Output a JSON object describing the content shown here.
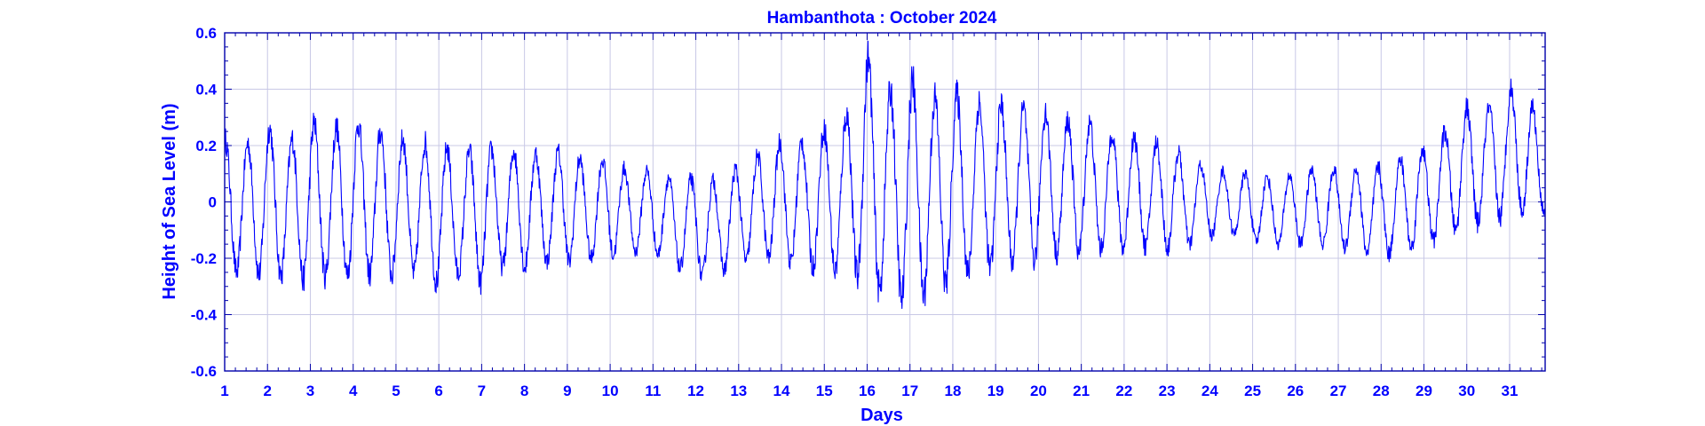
{
  "chart_data": {
    "type": "line",
    "title": "Hambanthota : October 2024",
    "xlabel": "Days",
    "ylabel": "Height of Sea Level (m)",
    "xlim": [
      1,
      31.83
    ],
    "ylim": [
      -0.6,
      0.6
    ],
    "x_ticks": [
      "1",
      "2",
      "3",
      "4",
      "5",
      "6",
      "7",
      "8",
      "9",
      "10",
      "11",
      "12",
      "13",
      "14",
      "15",
      "16",
      "17",
      "18",
      "19",
      "20",
      "21",
      "22",
      "23",
      "24",
      "25",
      "26",
      "27",
      "28",
      "29",
      "30",
      "31"
    ],
    "y_ticks": [
      "0.6",
      "0.4",
      "0.2",
      "0",
      "-0.2",
      "-0.4",
      "-0.6"
    ],
    "grid": true,
    "colors": {
      "line": "#0000ff",
      "text": "#0000cc",
      "grid": "#c8c8e6",
      "axes": "#0000aa"
    },
    "series": [
      {
        "x": [
          1.0,
          1.5,
          2.0,
          2.5,
          3.0,
          3.5,
          4.0,
          4.5,
          5.0,
          5.5,
          6.0,
          6.5,
          7.0,
          7.5,
          8.0,
          8.5,
          9.0,
          9.5,
          10.0,
          10.5,
          11.0,
          11.5,
          12.0,
          12.5,
          13.0,
          13.5,
          14.0,
          14.5,
          15.0,
          15.5,
          16.0,
          16.5,
          17.0,
          17.5,
          18.0,
          18.5,
          19.0,
          19.5,
          20.0,
          20.5,
          21.0,
          21.5,
          22.0,
          22.5,
          23.0,
          23.5,
          24.0,
          24.5,
          25.0,
          25.5,
          26.0,
          26.5,
          27.0,
          27.5,
          28.0,
          28.5,
          29.0,
          29.5,
          30.0,
          30.5,
          31.0,
          31.5,
          31.83
        ],
        "upper": [
          0.26,
          0.24,
          0.31,
          0.25,
          0.33,
          0.3,
          0.33,
          0.3,
          0.27,
          0.25,
          0.25,
          0.2,
          0.24,
          0.2,
          0.23,
          0.18,
          0.23,
          0.15,
          0.19,
          0.12,
          0.14,
          0.1,
          0.11,
          0.1,
          0.15,
          0.2,
          0.25,
          0.25,
          0.3,
          0.35,
          0.58,
          0.45,
          0.5,
          0.42,
          0.44,
          0.4,
          0.4,
          0.37,
          0.38,
          0.32,
          0.34,
          0.28,
          0.28,
          0.24,
          0.24,
          0.17,
          0.14,
          0.12,
          0.12,
          0.1,
          0.12,
          0.14,
          0.14,
          0.14,
          0.15,
          0.18,
          0.22,
          0.28,
          0.37,
          0.36,
          0.44,
          0.4,
          0.15
        ],
        "lower": [
          -0.3,
          -0.28,
          -0.31,
          -0.3,
          -0.33,
          -0.3,
          -0.31,
          -0.3,
          -0.3,
          -0.29,
          -0.33,
          -0.29,
          -0.33,
          -0.26,
          -0.27,
          -0.24,
          -0.25,
          -0.23,
          -0.22,
          -0.2,
          -0.2,
          -0.25,
          -0.3,
          -0.28,
          -0.25,
          -0.22,
          -0.25,
          -0.26,
          -0.28,
          -0.3,
          -0.34,
          -0.41,
          -0.41,
          -0.38,
          -0.33,
          -0.3,
          -0.28,
          -0.25,
          -0.25,
          -0.22,
          -0.22,
          -0.2,
          -0.2,
          -0.19,
          -0.2,
          -0.18,
          -0.14,
          -0.13,
          -0.16,
          -0.17,
          -0.17,
          -0.17,
          -0.18,
          -0.2,
          -0.22,
          -0.2,
          -0.18,
          -0.15,
          -0.12,
          -0.1,
          -0.08,
          -0.06,
          -0.05
        ]
      }
    ]
  }
}
